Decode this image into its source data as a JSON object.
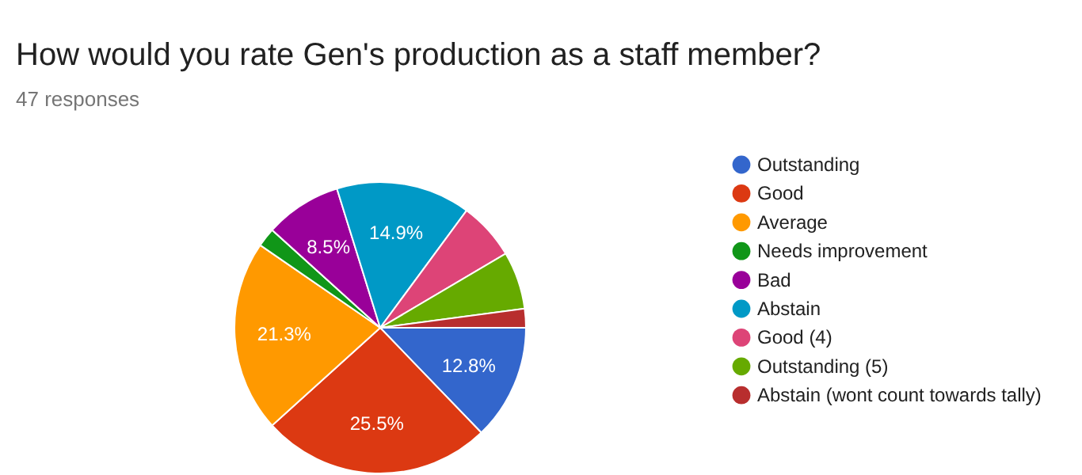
{
  "chart_data": {
    "type": "pie",
    "title": "How would you rate Gen's production as a staff member?",
    "subtitle": "47 responses",
    "categories": [
      "Outstanding",
      "Good",
      "Average",
      "Needs improvement",
      "Bad",
      "Abstain",
      "Good (4)",
      "Outstanding (5)",
      "Abstain (wont count towards tally)"
    ],
    "values": [
      12.8,
      25.5,
      21.3,
      2.1,
      8.5,
      14.9,
      6.4,
      6.4,
      2.1
    ],
    "colors": [
      "#3366cc",
      "#dc3912",
      "#ff9900",
      "#109618",
      "#990099",
      "#0099c6",
      "#dd4477",
      "#66aa00",
      "#b82e2e"
    ],
    "value_labels": [
      "12.8%",
      "25.5%",
      "21.3%",
      null,
      "8.5%",
      "14.9%",
      null,
      null,
      null
    ],
    "legend": "right"
  }
}
